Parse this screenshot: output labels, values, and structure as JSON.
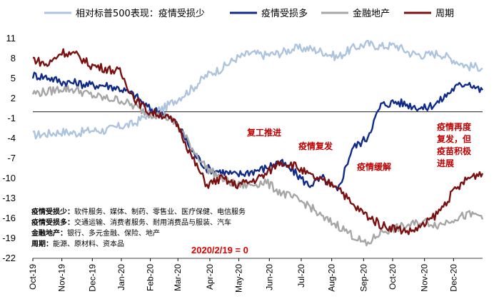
{
  "chart_data": {
    "type": "line",
    "legend": [
      "相对标普500表现：疫情受损少",
      "疫情受损多",
      "金融地产",
      "周期"
    ],
    "colors": {
      "series_1": "#adc4de",
      "series_2": "#102a8a",
      "series_3": "#a6a6a6",
      "series_4": "#7b1010"
    },
    "y_ticks": [
      "11",
      "8",
      "5",
      "2",
      "-1",
      "-4",
      "-7",
      "-10",
      "-13",
      "-16",
      "-19",
      "-22"
    ],
    "ylim": [
      -22,
      11
    ],
    "x_tick_labels": [
      "Oct-19",
      "Nov-19",
      "Dec-19",
      "Jan-20",
      "Feb-20",
      "Mar-20",
      "Apr-20",
      "May-20",
      "Jun-20",
      "Jul-20",
      "Aug-20",
      "Sep-20",
      "Oct-20",
      "Nov-20",
      "Dec-20"
    ],
    "x_anchor_index": [
      0,
      20,
      41,
      61,
      81,
      100,
      122,
      142,
      163,
      185,
      206,
      228,
      248,
      270,
      290
    ],
    "x_range": [
      0,
      310
    ],
    "series": [
      {
        "name": "相对标普500表现：疫情受损少",
        "x": [
          0,
          10,
          20,
          30,
          40,
          50,
          60,
          70,
          80,
          90,
          100,
          110,
          120,
          130,
          140,
          150,
          160,
          170,
          180,
          190,
          200,
          210,
          220,
          230,
          240,
          250,
          260,
          270,
          280,
          290,
          300,
          310
        ],
        "values": [
          -3.5,
          -3.3,
          -3.0,
          -3.2,
          -2.8,
          -2.8,
          -2.2,
          -1.8,
          -0.2,
          0.5,
          2.0,
          3.5,
          5.5,
          6.5,
          8.0,
          8.8,
          8.5,
          8.8,
          9.5,
          9.5,
          9.0,
          8.2,
          9.5,
          10.2,
          9.8,
          10.0,
          8.8,
          8.5,
          8.8,
          7.8,
          6.8,
          6.7
        ]
      },
      {
        "name": "疫情受损多",
        "x": [
          0,
          10,
          20,
          30,
          40,
          50,
          60,
          70,
          80,
          90,
          100,
          110,
          120,
          130,
          140,
          150,
          160,
          170,
          180,
          190,
          200,
          210,
          220,
          230,
          240,
          250,
          260,
          270,
          280,
          290,
          300,
          310
        ],
        "values": [
          5.5,
          5.2,
          4.5,
          4.3,
          4.0,
          4.0,
          3.5,
          2.5,
          0.5,
          -0.2,
          -2.0,
          -6.0,
          -8.5,
          -9.0,
          -9.5,
          -9.0,
          -8.5,
          -7.5,
          -9.0,
          -11.0,
          -10.0,
          -12.0,
          -5.5,
          -4.0,
          1.0,
          1.5,
          1.0,
          0.5,
          1.5,
          3.5,
          4.5,
          3.0
        ]
      },
      {
        "name": "金融地产",
        "x": [
          0,
          10,
          20,
          30,
          40,
          50,
          60,
          70,
          80,
          90,
          100,
          110,
          120,
          130,
          140,
          150,
          160,
          170,
          180,
          190,
          200,
          210,
          220,
          230,
          240,
          250,
          260,
          270,
          280,
          290,
          300,
          310
        ],
        "values": [
          2.8,
          3.0,
          3.5,
          3.3,
          2.5,
          2.0,
          1.8,
          0.8,
          -0.3,
          -0.5,
          -2.0,
          -5.5,
          -8.5,
          -10.0,
          -11.0,
          -11.0,
          -10.5,
          -12.0,
          -13.0,
          -14.0,
          -16.0,
          -17.0,
          -18.5,
          -20.0,
          -18.0,
          -17.5,
          -17.0,
          -16.5,
          -17.0,
          -16.0,
          -15.5,
          -15.5
        ]
      },
      {
        "name": "周期",
        "x": [
          0,
          10,
          20,
          30,
          40,
          50,
          60,
          70,
          80,
          90,
          100,
          110,
          120,
          130,
          140,
          150,
          160,
          170,
          180,
          190,
          200,
          210,
          220,
          230,
          240,
          250,
          260,
          270,
          280,
          290,
          300,
          310
        ],
        "values": [
          8.0,
          7.0,
          9.0,
          8.5,
          7.0,
          6.5,
          6.0,
          2.0,
          0.0,
          -0.5,
          -2.0,
          -7.0,
          -11.0,
          -10.0,
          -11.0,
          -10.5,
          -9.5,
          -7.5,
          -8.0,
          -9.5,
          -10.5,
          -11.0,
          -14.0,
          -15.5,
          -17.0,
          -17.5,
          -18.0,
          -17.0,
          -15.0,
          -12.0,
          -10.0,
          -9.0
        ]
      }
    ]
  },
  "annotations": {
    "resume_work": "复工推进",
    "epidemic_rebound": "疫情复发",
    "epidemic_ease": "疫情缓解",
    "epidemic_again_line1": "疫情再度",
    "epidemic_again_line2": "复发，但",
    "epidemic_again_line3": "疫苗积极",
    "epidemic_again_line4": "进展",
    "base_date": "2020/2/19 = 0"
  },
  "notes": [
    {
      "key": "疫情受损少：",
      "text": "软件服务、媒体、制药、零售业、医疗保健、电信服务"
    },
    {
      "key": "疫情受损多：",
      "text": "交通运输、消费者服务、耐用消费品与服装、汽车"
    },
    {
      "key": "金融地产：",
      "text": "银行、多元金融、保险、地产"
    },
    {
      "key": "周期：",
      "text": "能源、原材料、资本品"
    }
  ]
}
